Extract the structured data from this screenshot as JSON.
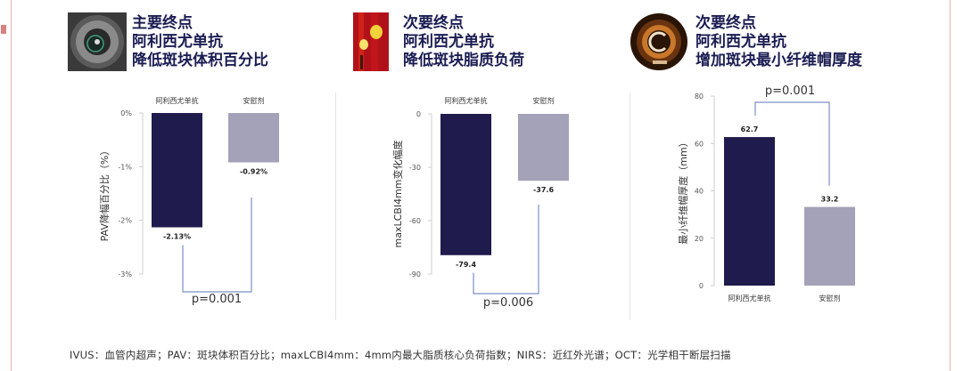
{
  "colors": {
    "drug": "#1f1b4d",
    "placebo": "#a3a2b8",
    "bracket": "#7b8fc4",
    "title": "#1a1c52"
  },
  "panels": [
    {
      "title_lines": [
        "主要终点",
        "阿利西尤单抗",
        "降低斑块体积百分比"
      ],
      "icon": "ivus-crosssection-icon"
    },
    {
      "title_lines": [
        "次要终点",
        "阿利西尤单抗",
        "降低斑块脂质负荷"
      ],
      "icon": "nirs-chemogram-icon"
    },
    {
      "title_lines": [
        "次要终点",
        "阿利西尤单抗",
        "增加斑块最小纤维帽厚度"
      ],
      "icon": "oct-crosssection-icon"
    }
  ],
  "chart_data": [
    {
      "type": "bar",
      "categories": [
        "阿利西尤单抗",
        "安慰剂"
      ],
      "values": [
        -2.13,
        -0.92
      ],
      "value_labels": [
        "-2.13%",
        "-0.92%"
      ],
      "ylabel": "PAV降幅百分比（%）",
      "ylim": [
        -3,
        0
      ],
      "yticks": [
        "0%",
        "-1%",
        "-2%",
        "-3%"
      ],
      "category_position": "top",
      "p_value": "p=0.001",
      "bracket_position": "bottom",
      "grid": false
    },
    {
      "type": "bar",
      "categories": [
        "阿利西尤单抗",
        "安慰剂"
      ],
      "values": [
        -79.4,
        -37.6
      ],
      "value_labels": [
        "-79.4",
        "-37.6"
      ],
      "ylabel": "maxLCBI4mm变化幅度",
      "ylim": [
        -90,
        0
      ],
      "yticks": [
        "0",
        "-30",
        "-60",
        "-90"
      ],
      "category_position": "top",
      "p_value": "p=0.006",
      "bracket_position": "bottom",
      "grid": false
    },
    {
      "type": "bar",
      "categories": [
        "阿利西尤单抗",
        "安慰剂"
      ],
      "values": [
        62.7,
        33.2
      ],
      "value_labels": [
        "62.7",
        "33.2"
      ],
      "ylabel": "最小纤维帽厚度（mm）",
      "ylim": [
        0,
        80
      ],
      "yticks": [
        "80",
        "60",
        "40",
        "20",
        "0"
      ],
      "category_position": "bottom",
      "p_value": "p=0.001",
      "bracket_position": "top",
      "grid": false
    }
  ],
  "footnote": "IVUS：血管内超声；PAV：斑块体积百分比；maxLCBI4mm：4mm内最大脂质核心负荷指数；NIRS：近红外光谱；OCT：光学相干断层扫描"
}
